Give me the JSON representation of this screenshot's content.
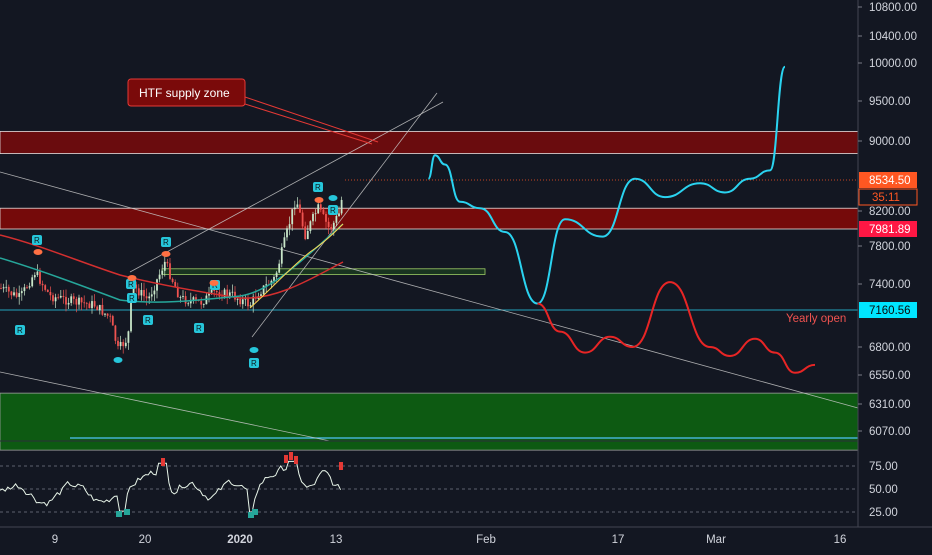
{
  "annotations": {
    "callout": "HTF supply zone",
    "yearly_open_label": "Yearly open"
  },
  "price_axis": {
    "ticks": [
      "10800.00",
      "10400.00",
      "10000.00",
      "9500.00",
      "9000.00",
      "8200.00",
      "7800.00",
      "7400.00",
      "6800.00",
      "6550.00",
      "6310.00",
      "6070.00"
    ],
    "markers": [
      {
        "label": "8534.50",
        "kind": "last",
        "color": "#ff5722"
      },
      {
        "label": "35:11",
        "kind": "countdown",
        "color": "#ff5722"
      },
      {
        "label": "7981.89",
        "kind": "level",
        "color": "#ff1744"
      },
      {
        "label": "7160.56",
        "kind": "yearly_open",
        "color": "#00e5ff"
      }
    ]
  },
  "oscillator_axis": {
    "ticks": [
      "75.00",
      "50.00",
      "25.00"
    ]
  },
  "time_axis": {
    "ticks": [
      "9",
      "20",
      "2020",
      "13",
      "Feb",
      "17",
      "Mar",
      "16"
    ]
  },
  "colors": {
    "background": "#131722",
    "supply_zone": "#7a0a0a",
    "demand_zone": "#0d5a12",
    "bullish_projection": "#2ad3f0",
    "bearish_projection": "#e82525",
    "ema_fast": "#26a69a",
    "ema_slow": "#d32f2f",
    "wedge": "#c8c8c8",
    "candle_up": "#c8e6c9",
    "candle_down": "#ef5350"
  },
  "chart_data": {
    "type": "candlestick",
    "zones": [
      {
        "name": "supply zone",
        "from": 8850,
        "to": 9120
      },
      {
        "name": "supply zone",
        "from": 7981.89,
        "to": 8230
      },
      {
        "name": "small demand box",
        "from": 7500,
        "to": 7560
      },
      {
        "name": "demand zone",
        "from": 5900,
        "to": 6400
      }
    ],
    "levels": [
      {
        "name": "last price",
        "value": 8534.5
      },
      {
        "name": "level",
        "value": 7981.89
      },
      {
        "name": "Yearly open",
        "value": 7160.56
      }
    ],
    "projections": [
      {
        "name": "bullish path",
        "color": "#2ad3f0",
        "points": [
          [
            8567,
            8550
          ],
          [
            8700,
            8830
          ],
          [
            8900,
            8720
          ],
          [
            9200,
            8300
          ],
          [
            9600,
            8230
          ],
          [
            10100,
            7950
          ],
          [
            10750,
            7220
          ],
          [
            11300,
            8100
          ],
          [
            12050,
            7900
          ],
          [
            12700,
            8550
          ],
          [
            13300,
            8350
          ],
          [
            14000,
            8500
          ],
          [
            14500,
            8400
          ],
          [
            15000,
            8550
          ],
          [
            15400,
            8650
          ],
          [
            15700,
            9950
          ]
        ]
      },
      {
        "name": "bearish path",
        "color": "#e82525",
        "points": [
          [
            10750,
            7220
          ],
          [
            11200,
            6950
          ],
          [
            11700,
            6750
          ],
          [
            12200,
            6900
          ],
          [
            12650,
            6800
          ],
          [
            13400,
            7420
          ],
          [
            14200,
            6800
          ],
          [
            14600,
            6720
          ],
          [
            15100,
            6880
          ],
          [
            15500,
            6750
          ],
          [
            15900,
            6570
          ],
          [
            16300,
            6640
          ]
        ]
      }
    ],
    "oscillator": {
      "name": "RSI",
      "levels": [
        70,
        50,
        30
      ]
    }
  }
}
